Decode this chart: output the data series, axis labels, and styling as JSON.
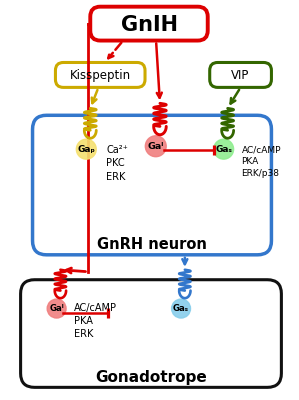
{
  "bg_color": "#ffffff",
  "red": "#dd0000",
  "yellow": "#ccaa00",
  "green": "#336600",
  "blue": "#3377cc",
  "black": "#111111",
  "light_yellow": "#f5e070",
  "light_red": "#f08080",
  "light_green": "#90ee90",
  "light_blue": "#87ceeb",
  "title": "GnIH",
  "kisspeptin": "Kisspeptin",
  "vip": "VIP",
  "gnrh_neuron": "GnRH neuron",
  "gonadotrope": "Gonadotrope",
  "gnrh_text1": "Ca²⁺\nPKC\nERK",
  "gnrh_text2": "AC/cAMP\nPKA\nERK/p38",
  "gona_text": "AC/cAMP\nPKA\nERK"
}
